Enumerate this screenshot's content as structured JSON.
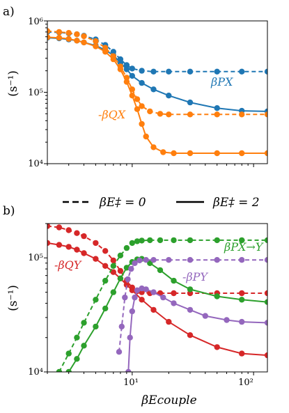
{
  "legend": {
    "dashed_label": "βE‡ = 0",
    "solid_label": "βE‡ = 2"
  },
  "x_axis": {
    "label": "βEcouple",
    "scale": "log",
    "xlim": [
      2,
      130
    ],
    "tick_labels": [
      "10¹",
      "10²"
    ]
  },
  "chart_data": [
    {
      "panel": "a)",
      "type": "line",
      "ylabel": "(s⁻¹)",
      "yscale": "log",
      "xlim": [
        2,
        130
      ],
      "ylim": [
        10000,
        1000000
      ],
      "y_tick_labels": [
        "10⁴",
        "10⁵",
        "10⁶"
      ],
      "series": [
        {
          "name": "βPX",
          "color": "#1f77b4",
          "style": "dashed",
          "x": [
            2.0,
            2.5,
            3.0,
            3.5,
            4.0,
            5.0,
            6.0,
            7.0,
            8.0,
            9.0,
            10.0,
            12.0,
            15.0,
            20.0,
            30.0,
            50.0,
            80.0,
            130.0
          ],
          "y": [
            700000,
            690000,
            670000,
            650000,
            620000,
            550000,
            460000,
            370000,
            290000,
            240000,
            215000,
            200000,
            195000,
            195000,
            195000,
            195000,
            195000,
            195000
          ]
        },
        {
          "name": "βPX",
          "color": "#1f77b4",
          "style": "solid",
          "x": [
            2.0,
            2.5,
            3.0,
            3.5,
            4.0,
            5.0,
            6.0,
            7.0,
            8.0,
            9.0,
            10.0,
            12.0,
            15.0,
            20.0,
            30.0,
            50.0,
            80.0,
            130.0
          ],
          "y": [
            580000,
            570000,
            550000,
            530000,
            500000,
            450000,
            390000,
            330000,
            260000,
            210000,
            170000,
            135000,
            110000,
            90000,
            72000,
            60000,
            55000,
            54000
          ]
        },
        {
          "name": "-βQX",
          "color": "#ff7f0e",
          "style": "dashed",
          "x": [
            2.0,
            2.5,
            3.0,
            3.5,
            4.0,
            5.0,
            6.0,
            7.0,
            8.0,
            9.0,
            10.0,
            11.0,
            12.0,
            14.0,
            17.0,
            20.0,
            30.0,
            50.0,
            80.0,
            130.0
          ],
          "y": [
            720000,
            700000,
            680000,
            650000,
            610000,
            520000,
            420000,
            320000,
            230000,
            160000,
            110000,
            80000,
            64000,
            54000,
            50000,
            49000,
            49000,
            49000,
            49000,
            49000
          ]
        },
        {
          "name": "-βQX",
          "color": "#ff7f0e",
          "style": "solid",
          "x": [
            2.0,
            2.5,
            3.0,
            3.5,
            4.0,
            5.0,
            6.0,
            7.0,
            8.0,
            9.0,
            10.0,
            11.0,
            12.0,
            13.0,
            15.0,
            18.0,
            22.0,
            30.0,
            50.0,
            80.0,
            130.0
          ],
          "y": [
            590000,
            580000,
            560000,
            530000,
            500000,
            440000,
            370000,
            290000,
            210000,
            140000,
            90000,
            58000,
            36000,
            24000,
            17000,
            14500,
            14000,
            14000,
            14000,
            14000,
            14000
          ]
        }
      ],
      "annotations": [
        {
          "text": "βPX",
          "color": "#1f77b4"
        },
        {
          "text": "-βQX",
          "color": "#ff7f0e"
        }
      ]
    },
    {
      "panel": "b)",
      "type": "line",
      "ylabel": "(s⁻¹)",
      "yscale": "log",
      "xlim": [
        2,
        130
      ],
      "ylim": [
        10000,
        200000
      ],
      "y_tick_labels": [
        "10⁴",
        "10⁵"
      ],
      "series": [
        {
          "name": "-βQY",
          "color": "#d62728",
          "style": "dashed",
          "x": [
            2.0,
            2.5,
            3.0,
            3.5,
            4.0,
            5.0,
            6.0,
            7.0,
            8.0,
            9.0,
            10.0,
            11.0,
            12.0,
            14.0,
            17.0,
            22.0,
            30.0,
            50.0,
            80.0,
            130.0
          ],
          "y": [
            190000,
            185000,
            175000,
            165000,
            155000,
            135000,
            115000,
            95000,
            77000,
            63000,
            55000,
            51000,
            50000,
            49000,
            49000,
            49000,
            49000,
            49000,
            49000,
            49000
          ]
        },
        {
          "name": "-βQY",
          "color": "#d62728",
          "style": "solid",
          "x": [
            2.0,
            2.5,
            3.0,
            3.5,
            4.0,
            5.0,
            6.0,
            7.0,
            8.0,
            9.0,
            10.0,
            12.0,
            15.0,
            20.0,
            30.0,
            50.0,
            80.0,
            130.0
          ],
          "y": [
            135000,
            130000,
            125000,
            118000,
            110000,
            98000,
            85000,
            75000,
            66000,
            58000,
            52000,
            43000,
            35000,
            27500,
            21000,
            16500,
            14500,
            14000
          ]
        },
        {
          "name": "βPX→Y",
          "color": "#2ca02c",
          "style": "dashed",
          "x": [
            2.5,
            3.0,
            3.5,
            4.0,
            5.0,
            6.0,
            7.0,
            8.0,
            9.0,
            10.0,
            11.0,
            12.0,
            14.0,
            17.0,
            22.0,
            30.0,
            50.0,
            80.0,
            130.0
          ],
          "y": [
            10000,
            14500,
            20000,
            27000,
            43000,
            63000,
            85000,
            105000,
            122000,
            135000,
            140000,
            142000,
            143000,
            143000,
            143000,
            143000,
            143000,
            143000,
            143000
          ]
        },
        {
          "name": "βPX→Y",
          "color": "#2ca02c",
          "style": "solid",
          "x": [
            3.0,
            3.5,
            4.0,
            5.0,
            6.0,
            7.0,
            8.0,
            9.0,
            10.0,
            11.0,
            12.0,
            14.0,
            17.0,
            22.0,
            30.0,
            50.0,
            80.0,
            130.0
          ],
          "y": [
            10000,
            13000,
            17000,
            25000,
            36000,
            50000,
            66000,
            82000,
            92000,
            97000,
            98000,
            90000,
            78000,
            63000,
            53000,
            46000,
            43000,
            41000
          ]
        },
        {
          "name": "-βPY",
          "color": "#9467bd",
          "style": "dashed",
          "x": [
            7.8,
            8.2,
            8.7,
            9.2,
            9.8,
            10.5,
            11.5,
            13.0,
            15.0,
            20.0,
            30.0,
            50.0,
            80.0,
            130.0
          ],
          "y": [
            15000,
            25000,
            45000,
            65000,
            80000,
            90000,
            95000,
            96000,
            96000,
            96000,
            96000,
            96000,
            96000,
            96000
          ]
        },
        {
          "name": "-βPY",
          "color": "#9467bd",
          "style": "solid",
          "x": [
            9.3,
            9.6,
            10.0,
            10.5,
            11.0,
            12.0,
            13.0,
            15.0,
            18.0,
            22.0,
            30.0,
            40.0,
            60.0,
            80.0,
            130.0
          ],
          "y": [
            10000,
            20000,
            34000,
            45000,
            52000,
            54000,
            53000,
            50000,
            45000,
            40000,
            35000,
            31000,
            28500,
            27500,
            27000
          ]
        }
      ],
      "annotations": [
        {
          "text": "-βQY",
          "color": "#d62728"
        },
        {
          "text": "βPX→Y",
          "color": "#2ca02c"
        },
        {
          "text": "-βPY",
          "color": "#9467bd"
        }
      ]
    }
  ]
}
